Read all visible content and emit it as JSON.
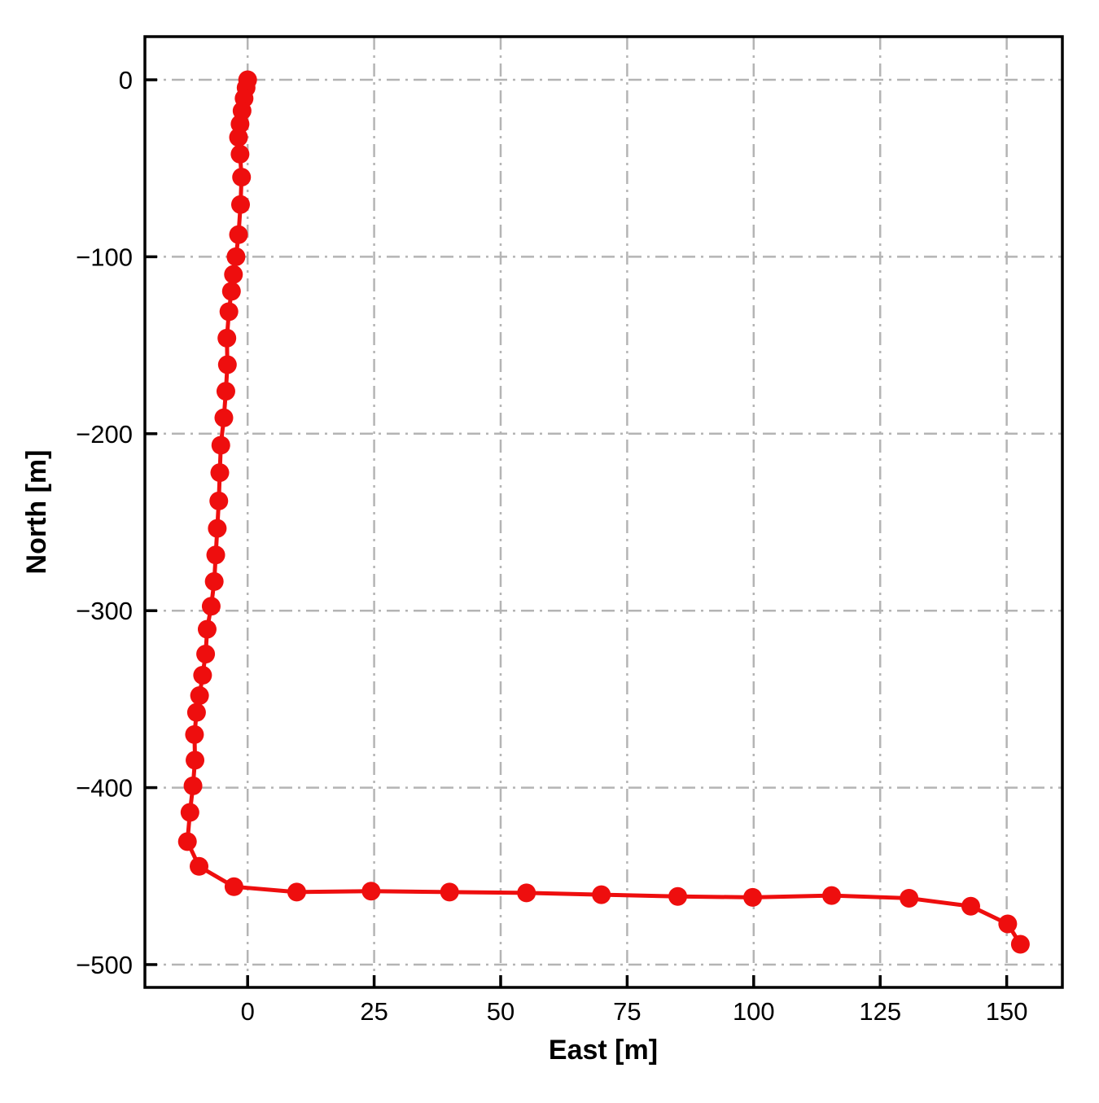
{
  "figure": {
    "background_color": "#ffffff",
    "axis_color": "#000000",
    "grid_color": "#b4b4b4",
    "grid_style": "dash-dot"
  },
  "chart_data": {
    "type": "line",
    "title": "",
    "xlabel": "East [m]",
    "ylabel": "North [m]",
    "xlim": [
      -20.3,
      161.0
    ],
    "ylim": [
      -512.9,
      24.4
    ],
    "x_ticks": [
      0,
      25,
      50,
      75,
      100,
      125,
      150
    ],
    "y_ticks": [
      0,
      -100,
      -200,
      -300,
      -400,
      -500
    ],
    "grid": true,
    "legend": "none",
    "series": [
      {
        "name": "trajectory",
        "color": "#ee0e0e",
        "marker": "circle",
        "marker_radius": 11.5,
        "line_width": 5,
        "points": [
          [
            0.0,
            0.0
          ],
          [
            -0.3,
            -4.5
          ],
          [
            -0.7,
            -10.5
          ],
          [
            -1.1,
            -17.5
          ],
          [
            -1.5,
            -25.0
          ],
          [
            -1.8,
            -32.5
          ],
          [
            -1.5,
            -42.0
          ],
          [
            -1.2,
            -55.0
          ],
          [
            -1.4,
            -70.5
          ],
          [
            -1.8,
            -87.5
          ],
          [
            -2.3,
            -100.0
          ],
          [
            -2.8,
            -110.0
          ],
          [
            -3.2,
            -119.5
          ],
          [
            -3.7,
            -131.0
          ],
          [
            -4.1,
            -146.0
          ],
          [
            -4.0,
            -161.0
          ],
          [
            -4.3,
            -176.0
          ],
          [
            -4.7,
            -191.0
          ],
          [
            -5.3,
            -206.5
          ],
          [
            -5.5,
            -222.0
          ],
          [
            -5.7,
            -238.0
          ],
          [
            -6.0,
            -253.5
          ],
          [
            -6.3,
            -268.5
          ],
          [
            -6.6,
            -283.5
          ],
          [
            -7.2,
            -297.5
          ],
          [
            -8.0,
            -310.5
          ],
          [
            -8.3,
            -324.5
          ],
          [
            -8.9,
            -336.5
          ],
          [
            -9.5,
            -348.0
          ],
          [
            -10.1,
            -357.5
          ],
          [
            -10.5,
            -370.0
          ],
          [
            -10.4,
            -384.5
          ],
          [
            -10.8,
            -399.0
          ],
          [
            -11.4,
            -414.0
          ],
          [
            -11.9,
            -430.5
          ],
          [
            -9.6,
            -444.5
          ],
          [
            -2.7,
            -456.0
          ],
          [
            9.7,
            -459.0
          ],
          [
            24.4,
            -458.5
          ],
          [
            39.9,
            -459.0
          ],
          [
            55.1,
            -459.5
          ],
          [
            69.9,
            -460.5
          ],
          [
            85.0,
            -461.5
          ],
          [
            99.8,
            -462.0
          ],
          [
            115.4,
            -461.0
          ],
          [
            130.7,
            -462.5
          ],
          [
            142.9,
            -467.0
          ],
          [
            150.2,
            -477.0
          ],
          [
            152.7,
            -488.5
          ]
        ]
      }
    ]
  }
}
